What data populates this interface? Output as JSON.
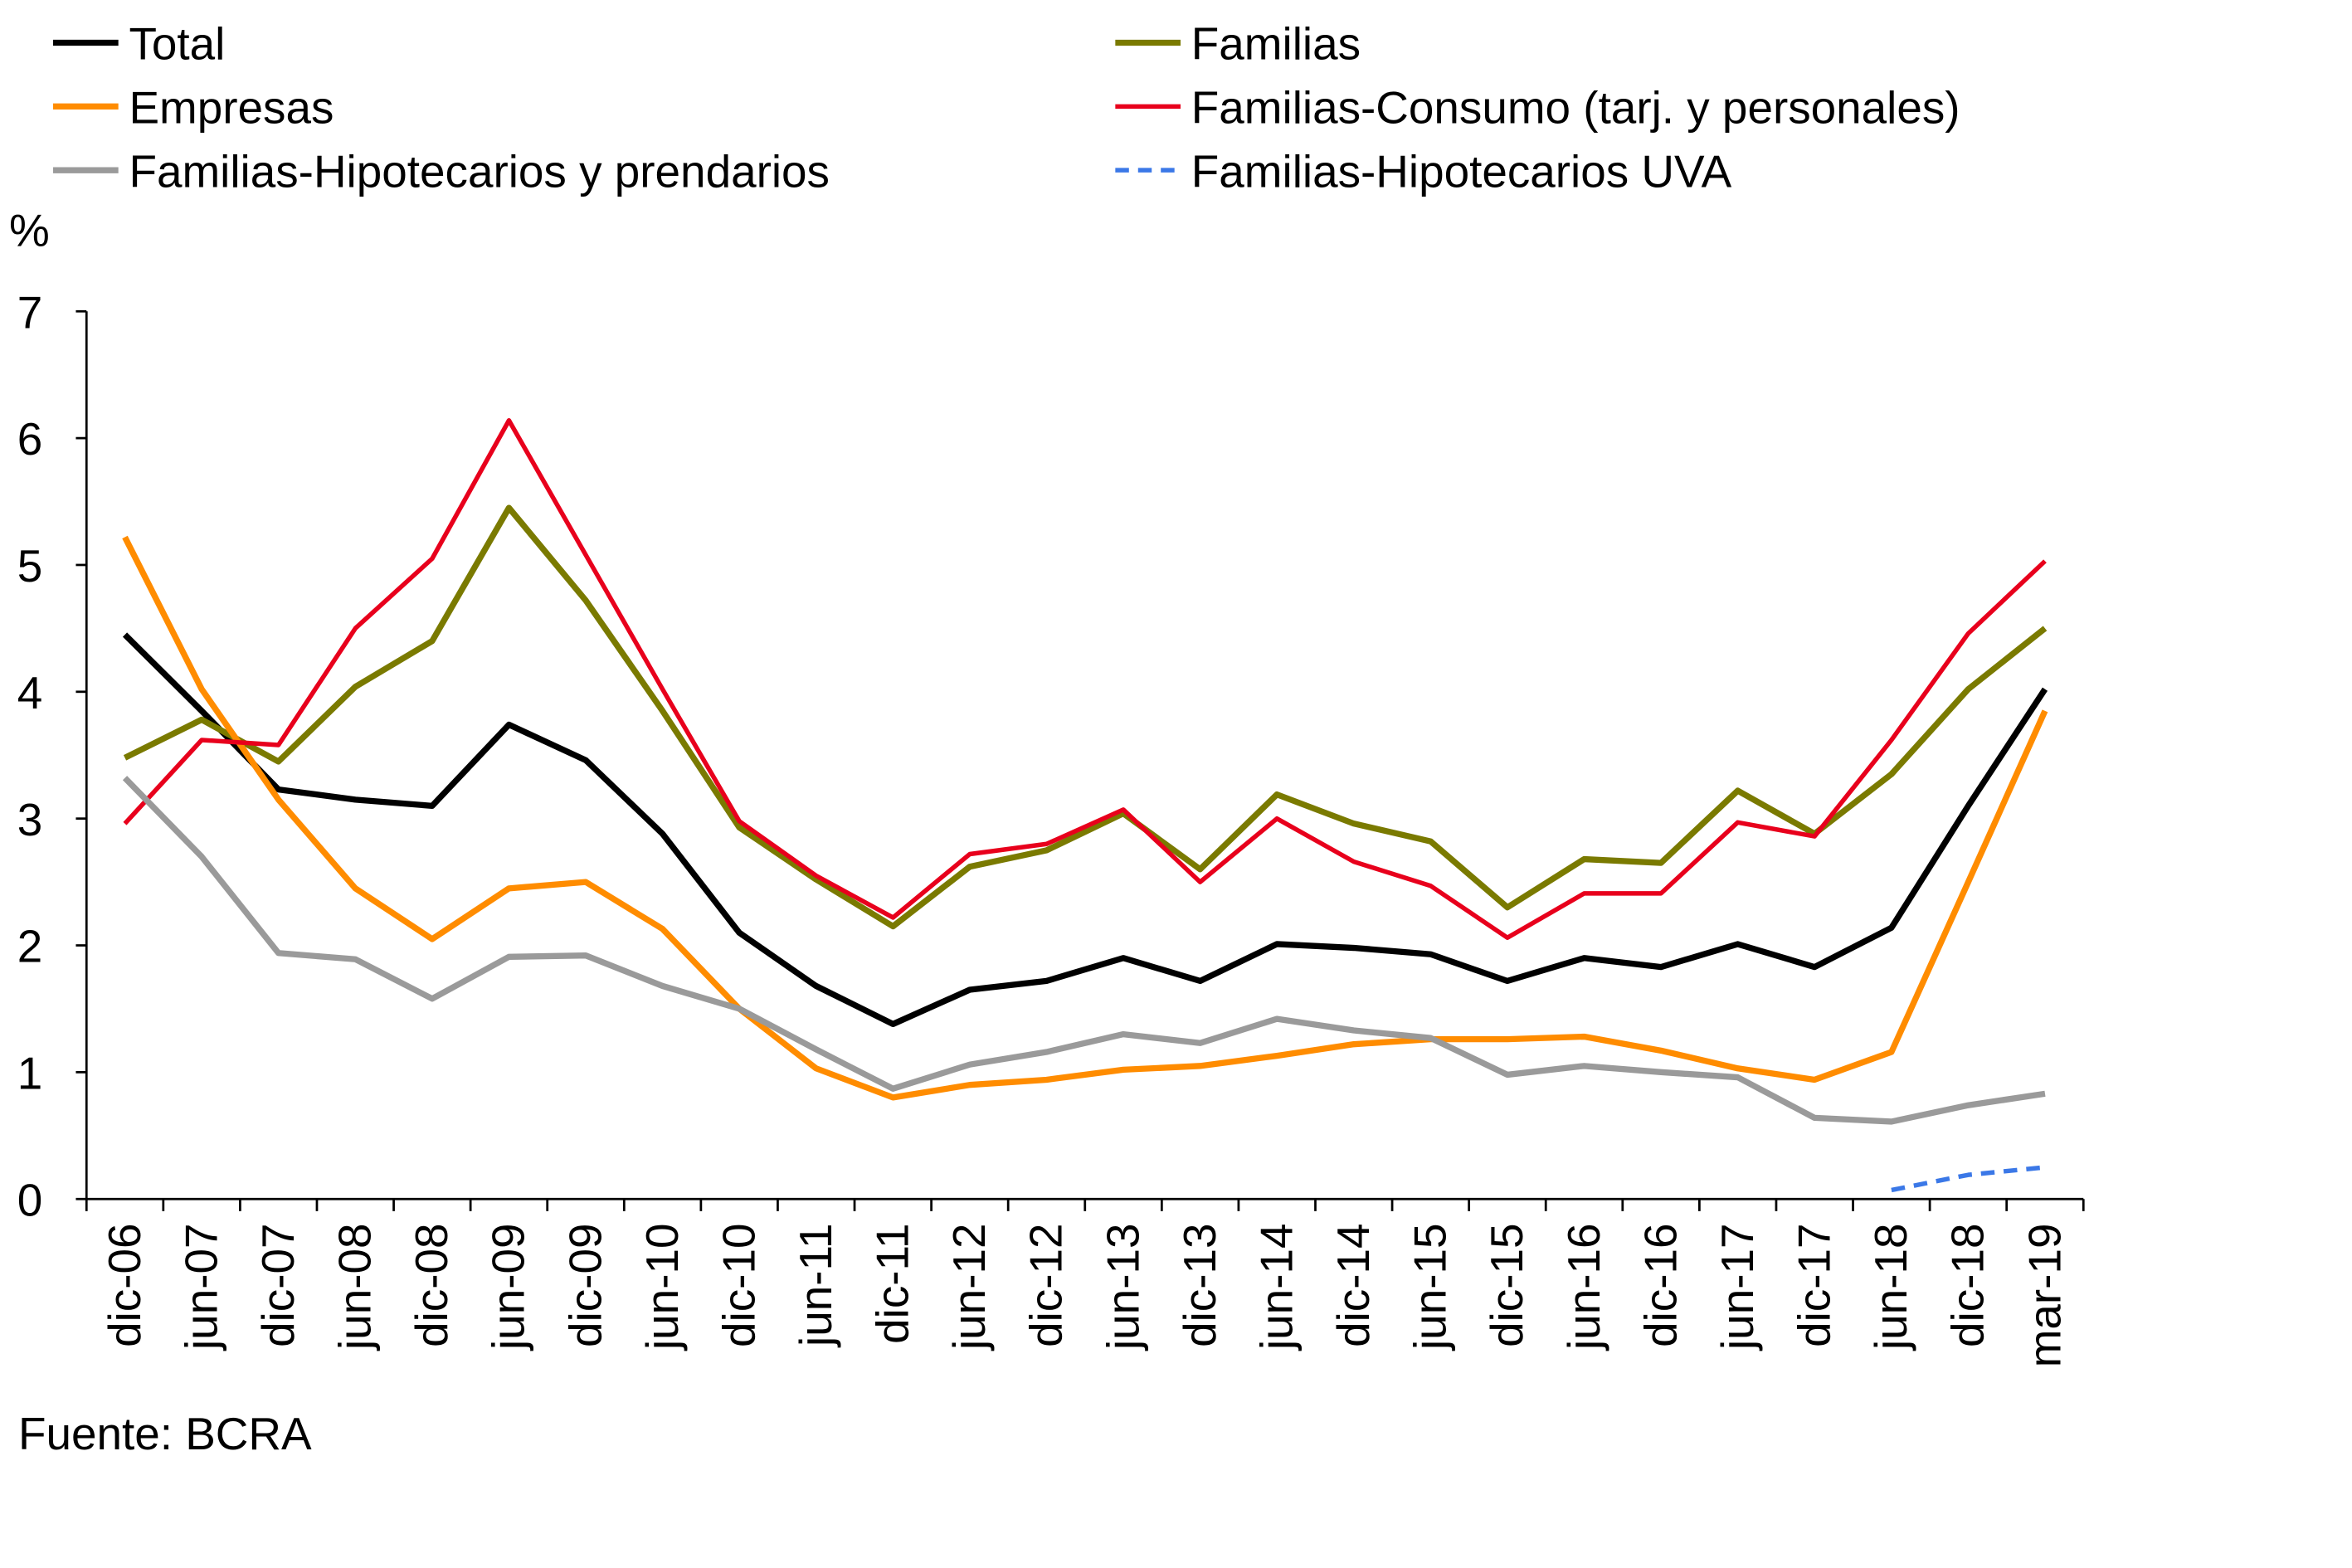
{
  "chart_data": {
    "type": "line",
    "ylabel": "%",
    "ylim": [
      0,
      7
    ],
    "yticks": [
      0,
      1,
      2,
      3,
      4,
      5,
      6,
      7
    ],
    "grid": false,
    "legend_placement": "top",
    "categories": [
      "dic-06",
      "jun-07",
      "dic-07",
      "jun-08",
      "dic-08",
      "jun-09",
      "dic-09",
      "jun-10",
      "dic-10",
      "jun-11",
      "dic-11",
      "jun-12",
      "dic-12",
      "jun-13",
      "dic-13",
      "jun-14",
      "dic-14",
      "jun-15",
      "dic-15",
      "jun-16",
      "dic-16",
      "jun-17",
      "dic-17",
      "jun-18",
      "dic-18",
      "mar-19"
    ],
    "series": [
      {
        "name": "Total",
        "color": "#000000",
        "dash": false,
        "width": 4,
        "values": [
          4.45,
          3.85,
          3.23,
          3.15,
          3.1,
          3.74,
          3.46,
          2.88,
          2.1,
          1.68,
          1.38,
          1.65,
          1.72,
          1.9,
          1.72,
          2.01,
          1.98,
          1.93,
          1.72,
          1.9,
          1.83,
          2.01,
          1.83,
          2.14,
          3.1,
          4.02
        ]
      },
      {
        "name": "Familias",
        "color": "#7a7a00",
        "dash": false,
        "width": 4,
        "values": [
          3.48,
          3.78,
          3.45,
          4.04,
          4.4,
          5.45,
          4.72,
          3.85,
          2.93,
          2.52,
          2.15,
          2.62,
          2.75,
          3.04,
          2.6,
          3.19,
          2.96,
          2.82,
          2.3,
          2.68,
          2.65,
          3.22,
          2.88,
          3.35,
          4.02,
          4.5
        ]
      },
      {
        "name": "Empresas",
        "color": "#ff8c00",
        "dash": false,
        "width": 4,
        "values": [
          5.22,
          4.02,
          3.15,
          2.45,
          2.05,
          2.45,
          2.5,
          2.13,
          1.5,
          1.03,
          0.8,
          0.9,
          0.94,
          1.02,
          1.05,
          1.13,
          1.22,
          1.26,
          1.26,
          1.28,
          1.17,
          1.03,
          0.94,
          1.16,
          2.5,
          3.85
        ]
      },
      {
        "name": "Familias-Consumo (tarj. y personales)",
        "color": "#e8001c",
        "dash": false,
        "width": 3,
        "values": [
          2.96,
          3.62,
          3.58,
          4.5,
          5.05,
          6.14,
          5.08,
          4.02,
          2.98,
          2.55,
          2.22,
          2.72,
          2.8,
          3.07,
          2.5,
          3.0,
          2.66,
          2.47,
          2.06,
          2.41,
          2.41,
          2.97,
          2.86,
          3.62,
          4.46,
          5.03
        ]
      },
      {
        "name": "Familias-Hipotecarios y prendarios",
        "color": "#9a9a9a",
        "dash": false,
        "width": 4,
        "values": [
          3.32,
          2.7,
          1.94,
          1.89,
          1.58,
          1.91,
          1.92,
          1.68,
          1.5,
          1.18,
          0.87,
          1.06,
          1.16,
          1.3,
          1.23,
          1.42,
          1.33,
          1.27,
          0.98,
          1.05,
          1.0,
          0.96,
          0.64,
          0.61,
          0.74,
          0.83
        ]
      },
      {
        "name": "Familias-Hipotecarios UVA",
        "color": "#3b78e7",
        "dash": true,
        "width": 3,
        "values": [
          null,
          null,
          null,
          null,
          null,
          null,
          null,
          null,
          null,
          null,
          null,
          null,
          null,
          null,
          null,
          null,
          null,
          null,
          null,
          null,
          null,
          null,
          null,
          0.07,
          0.19,
          0.25
        ]
      }
    ],
    "source": "Fuente: BCRA"
  }
}
